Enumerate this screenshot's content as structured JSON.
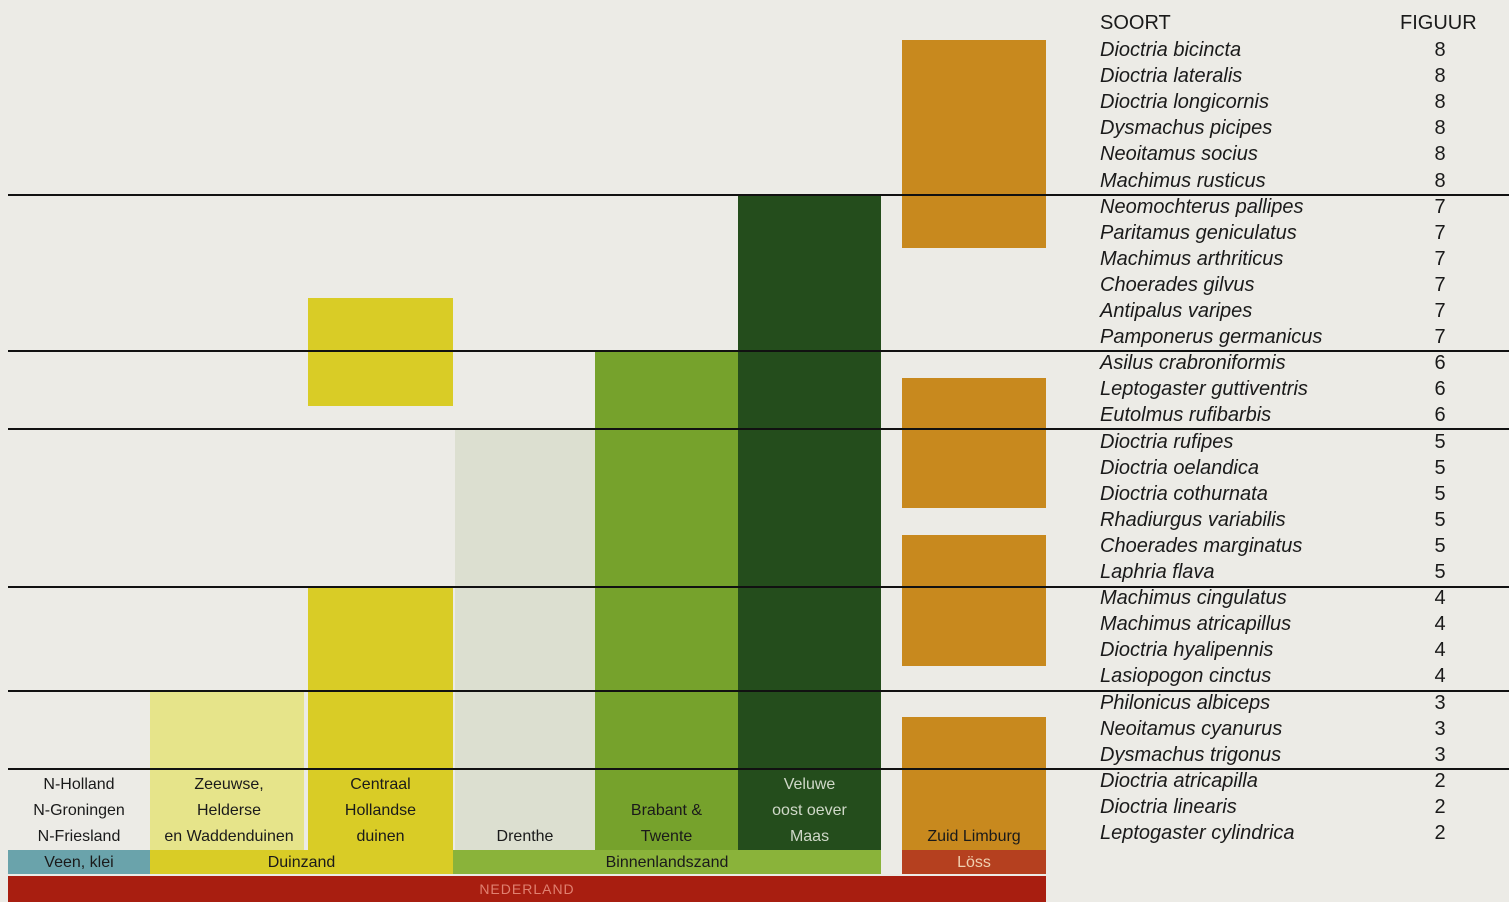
{
  "colors": {
    "background": "#ecebe6",
    "light_yellow": "#e6e48a",
    "yellow": "#d9cc26",
    "pale": "#dcdfd0",
    "green": "#76a22c",
    "dark_green": "#244d1c",
    "ochre": "#c8891e",
    "veen_blue": "#6aa3ab",
    "duinzand": "#d9cc26",
    "binnenlandszand": "#8ab33a",
    "loss": "#b5401f",
    "nederland": "#a81e10"
  },
  "regions": [
    {
      "line1": "N-Holland",
      "line2": "N-Groningen",
      "line3": "N-Friesland"
    },
    {
      "line1": "Zeeuwse,",
      "line2": "Helderse",
      "line3": "en Waddenduinen"
    },
    {
      "line1": "Centraal",
      "line2": "Hollandse",
      "line3": "duinen"
    },
    {
      "line1": "",
      "line2": "",
      "line3": "Drenthe"
    },
    {
      "line1": "",
      "line2": "Brabant &",
      "line3": "Twente"
    },
    {
      "line1": "Veluwe",
      "line2": "oost oever",
      "line3": "Maas"
    },
    {
      "line1": "",
      "line2": "",
      "line3": "Zuid Limburg"
    }
  ],
  "soil_bands": {
    "veen": "Veen, klei",
    "duinzand": "Duinzand",
    "binnenlandszand": "Binnenlandszand",
    "loss": "Löss"
  },
  "country": "NEDERLAND",
  "table": {
    "col_species": "SOORT",
    "col_figure": "FIGUUR",
    "rows": [
      {
        "species": "Dioctria bicincta",
        "figure": "8"
      },
      {
        "species": "Dioctria lateralis",
        "figure": "8"
      },
      {
        "species": "Dioctria longicornis",
        "figure": "8"
      },
      {
        "species": "Dysmachus picipes",
        "figure": "8"
      },
      {
        "species": "Neoitamus socius",
        "figure": "8"
      },
      {
        "species": "Machimus rusticus",
        "figure": "8"
      },
      {
        "species": "Neomochterus pallipes",
        "figure": "7"
      },
      {
        "species": "Paritamus geniculatus",
        "figure": "7"
      },
      {
        "species": "Machimus arthriticus",
        "figure": "7"
      },
      {
        "species": "Choerades gilvus",
        "figure": "7"
      },
      {
        "species": "Antipalus varipes",
        "figure": "7"
      },
      {
        "species": "Pamponerus germanicus",
        "figure": "7"
      },
      {
        "species": "Asilus crabroniformis",
        "figure": "6"
      },
      {
        "species": "Leptogaster guttiventris",
        "figure": "6"
      },
      {
        "species": "Eutolmus rufibarbis",
        "figure": "6"
      },
      {
        "species": "Dioctria rufipes",
        "figure": "5"
      },
      {
        "species": "Dioctria oelandica",
        "figure": "5"
      },
      {
        "species": "Dioctria cothurnata",
        "figure": "5"
      },
      {
        "species": "Rhadiurgus variabilis",
        "figure": "5"
      },
      {
        "species": "Choerades marginatus",
        "figure": "5"
      },
      {
        "species": "Laphria flava",
        "figure": "5"
      },
      {
        "species": "Machimus cingulatus",
        "figure": "4"
      },
      {
        "species": "Machimus atricapillus",
        "figure": "4"
      },
      {
        "species": "Dioctria hyalipennis",
        "figure": "4"
      },
      {
        "species": "Lasiopogon cinctus",
        "figure": "4"
      },
      {
        "species": "Philonicus albiceps",
        "figure": "3"
      },
      {
        "species": "Neoitamus cyanurus",
        "figure": "3"
      },
      {
        "species": "Dysmachus trigonus",
        "figure": "3"
      },
      {
        "species": "Dioctria atricapilla",
        "figure": "2"
      },
      {
        "species": "Dioctria linearis",
        "figure": "2"
      },
      {
        "species": "Leptogaster cylindrica",
        "figure": "2"
      }
    ]
  }
}
